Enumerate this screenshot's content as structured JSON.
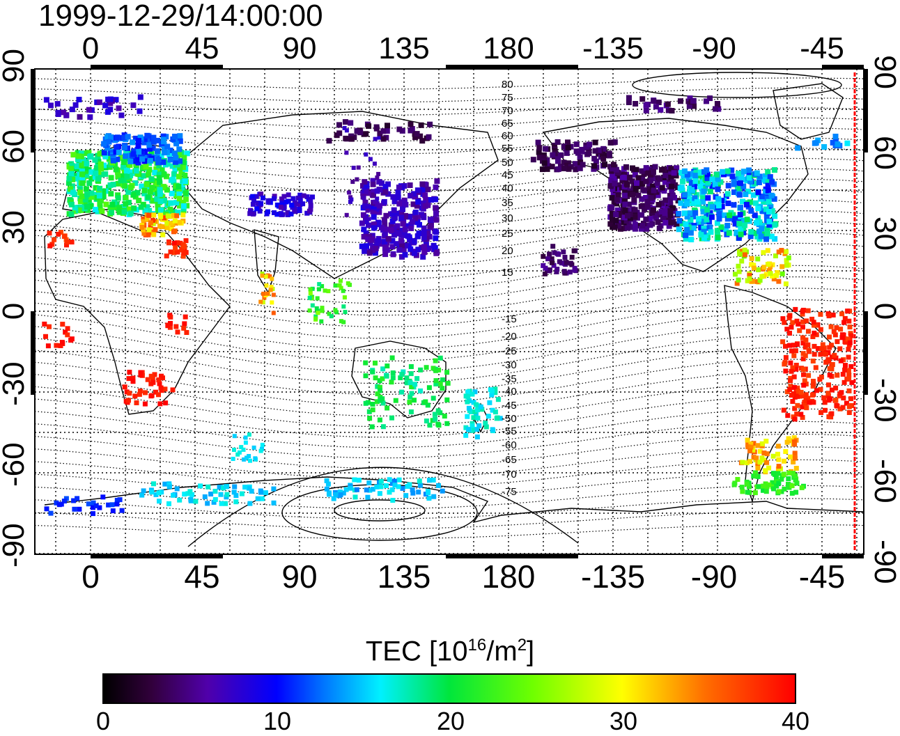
{
  "title": "1999-12-29/14:00:00",
  "axes": {
    "top_ticks": [
      "0",
      "45",
      "90",
      "135",
      "180",
      "-135",
      "-90",
      "-45"
    ],
    "bottom_ticks": [
      "0",
      "45",
      "90",
      "135",
      "180",
      "-135",
      "-90",
      "-45"
    ],
    "left_ticks": [
      "90",
      "60",
      "30",
      "0",
      "-30",
      "-60",
      "-90"
    ],
    "right_ticks": [
      "90",
      "60",
      "30",
      "0",
      "-30",
      "-60",
      "-90"
    ]
  },
  "contour_labels": [
    "80",
    "75",
    "70",
    "65",
    "60",
    "55",
    "50",
    "45",
    "40",
    "35",
    "30",
    "25",
    "20",
    "15",
    "-15",
    "-20",
    "-25",
    "-30",
    "-35",
    "-40",
    "-45",
    "-50",
    "-55",
    "-60",
    "-65",
    "-70",
    "-75"
  ],
  "colorbar": {
    "title_prefix": "TEC  [10",
    "title_exp1": "16",
    "title_mid": "/m",
    "title_exp2": "2",
    "title_suffix": "]",
    "ticks": [
      "0",
      "10",
      "20",
      "30",
      "40"
    ],
    "range": [
      0,
      40
    ]
  },
  "colors": {
    "terminator": "#ff0000"
  }
}
